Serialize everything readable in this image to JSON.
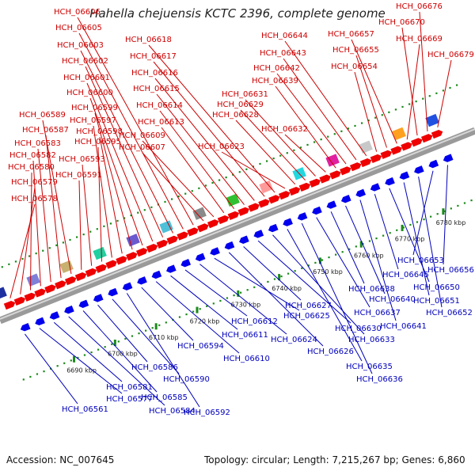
{
  "title": "Hahella chejuensis KCTC 2396, complete genome",
  "footer": {
    "accession": "Accession: NC_007645",
    "summary": "Topology: circular; Length: 7,215,267 bp; Genes: 6,860"
  },
  "colors": {
    "forward_label": "#cc0000",
    "reverse_label": "#0000bb",
    "forward_feature": "#ee0000",
    "reverse_feature": "#0000ee",
    "tick": "#1a8a1a",
    "backbone": "#9a9a9a"
  },
  "chart_data": {
    "type": "genome-map",
    "orientation": "diagonal",
    "axis_unit": "kbp",
    "ticks": [
      {
        "pos": 6690,
        "label": "6690 kbp"
      },
      {
        "pos": 6700,
        "label": "6700 kbp"
      },
      {
        "pos": 6710,
        "label": "6710 kbp"
      },
      {
        "pos": 6720,
        "label": "6720 kbp"
      },
      {
        "pos": 6730,
        "label": "6730 kbp"
      },
      {
        "pos": 6740,
        "label": "6740 kbp"
      },
      {
        "pos": 6750,
        "label": "6750 kbp"
      },
      {
        "pos": 6760,
        "label": "6760 kbp"
      },
      {
        "pos": 6770,
        "label": "6770 kbp"
      },
      {
        "pos": 6780,
        "label": "6780 kbp"
      }
    ],
    "forward_genes": [
      "HCH_06578",
      "HCH_06579",
      "HCH_06580",
      "HCH_06582",
      "HCH_06583",
      "HCH_06587",
      "HCH_06589",
      "HCH_06591",
      "HCH_06593",
      "HCH_06595",
      "HCH_06597",
      "HCH_06598",
      "HCH_06599",
      "HCH_06600",
      "HCH_06601",
      "HCH_06602",
      "HCH_06603",
      "HCH_06605",
      "HCH_06606",
      "HCH_06607",
      "HCH_06609",
      "HCH_06613",
      "HCH_06614",
      "HCH_06615",
      "HCH_06616",
      "HCH_06617",
      "HCH_06618",
      "HCH_06623",
      "HCH_06628",
      "HCH_06629",
      "HCH_06631",
      "HCH_06632",
      "HCH_06639",
      "HCH_06642",
      "HCH_06643",
      "HCH_06644",
      "HCH_06654",
      "HCH_06655",
      "HCH_06657",
      "HCH_06669",
      "HCH_06670",
      "HCH_06676",
      "HCH_06679"
    ],
    "reverse_genes": [
      "HCH_06561",
      "HCH_06577",
      "HCH_06581",
      "HCH_06584",
      "HCH_06585",
      "HCH_06586",
      "HCH_06590",
      "HCH_06592",
      "HCH_06594",
      "HCH_06610",
      "HCH_06611",
      "HCH_06612",
      "HCH_06624",
      "HCH_06625",
      "HCH_06626",
      "HCH_06627",
      "HCH_06630",
      "HCH_06633",
      "HCH_06635",
      "HCH_06636",
      "HCH_06637",
      "HCH_06638",
      "HCH_06640",
      "HCH_06641",
      "HCH_06645",
      "HCH_06650",
      "HCH_06651",
      "HCH_06652",
      "HCH_06653",
      "HCH_06656"
    ]
  }
}
